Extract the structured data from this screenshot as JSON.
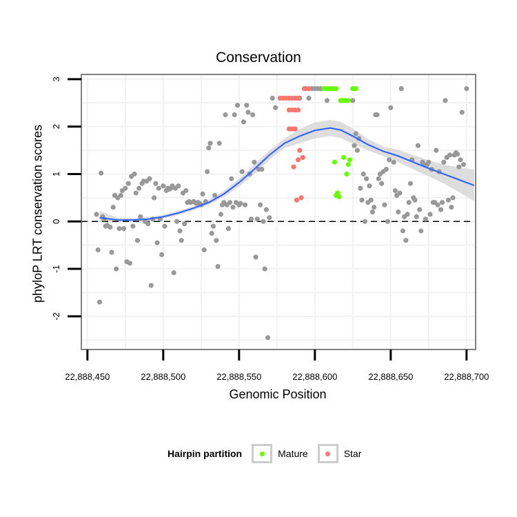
{
  "chart_data": {
    "type": "scatter",
    "title": "Conservation",
    "xlabel": "Genomic Position",
    "ylabel": "phyloP LRT conservation scores",
    "xlim": [
      22888446,
      22888706
    ],
    "ylim": [
      -2.7,
      3.1
    ],
    "x_ticks": [
      22888450,
      22888500,
      22888550,
      22888600,
      22888650,
      22888700
    ],
    "x_tick_labels": [
      "22,888,450",
      "22,888,500",
      "22,888,550",
      "22,888,600",
      "22,888,650",
      "22,888,700"
    ],
    "y_ticks": [
      -2,
      -1,
      0,
      1,
      2,
      3
    ],
    "y_tick_labels": [
      "-2",
      "-1",
      "0",
      "1",
      "2",
      "3"
    ],
    "reference_line": {
      "y": 0,
      "style": "dashed"
    },
    "grid": true,
    "legend": {
      "title": "Hairpin partition",
      "position": "bottom",
      "entries": [
        {
          "label": "Mature",
          "color": "#66ff00"
        },
        {
          "label": "Star",
          "color": "#f8766d"
        }
      ]
    },
    "colors": {
      "other": "#999999",
      "Mature": "#66ff00",
      "Star": "#f8766d",
      "smooth": "#3366ff",
      "band": "#d9d9d9",
      "panel_border": "#808080",
      "grid": "#f2f2f2"
    },
    "smooth": {
      "x": [
        22888458,
        22888470,
        22888480,
        22888490,
        22888500,
        22888510,
        22888520,
        22888530,
        22888540,
        22888550,
        22888560,
        22888570,
        22888580,
        22888590,
        22888600,
        22888610,
        22888617,
        22888625,
        22888635,
        22888645,
        22888655,
        22888665,
        22888675,
        22888685,
        22888695,
        22888705
      ],
      "y": [
        0.08,
        0.03,
        0.03,
        0.05,
        0.1,
        0.18,
        0.28,
        0.4,
        0.58,
        0.82,
        1.1,
        1.4,
        1.65,
        1.8,
        1.92,
        1.97,
        1.93,
        1.8,
        1.62,
        1.48,
        1.38,
        1.25,
        1.12,
        1.0,
        0.88,
        0.76
      ],
      "lower": [
        -0.02,
        -0.02,
        -0.01,
        0.01,
        0.06,
        0.14,
        0.24,
        0.35,
        0.52,
        0.73,
        1.0,
        1.3,
        1.55,
        1.65,
        1.75,
        1.8,
        1.76,
        1.64,
        1.5,
        1.38,
        1.25,
        1.1,
        0.95,
        0.8,
        0.62,
        0.43
      ],
      "upper": [
        0.22,
        0.08,
        0.07,
        0.09,
        0.14,
        0.22,
        0.32,
        0.45,
        0.64,
        0.9,
        1.2,
        1.5,
        1.75,
        1.95,
        2.09,
        2.14,
        2.1,
        1.96,
        1.74,
        1.58,
        1.51,
        1.4,
        1.29,
        1.2,
        1.14,
        1.09
      ]
    },
    "series": [
      {
        "name": "Other",
        "color": "#999999",
        "points": [
          [
            22888456,
            0.15
          ],
          [
            22888457,
            -0.6
          ],
          [
            22888458,
            -1.7
          ],
          [
            22888459,
            1.02
          ],
          [
            22888460,
            0.1
          ],
          [
            22888461,
            0.05
          ],
          [
            22888462,
            -0.1
          ],
          [
            22888463,
            -0.08
          ],
          [
            22888465,
            -0.12
          ],
          [
            22888466,
            -0.65
          ],
          [
            22888467,
            0.3
          ],
          [
            22888468,
            0.55
          ],
          [
            22888469,
            -1.0
          ],
          [
            22888470,
            0.5
          ],
          [
            22888471,
            -0.15
          ],
          [
            22888472,
            0.55
          ],
          [
            22888473,
            0.65
          ],
          [
            22888474,
            -0.15
          ],
          [
            22888475,
            0.7
          ],
          [
            22888476,
            -0.85
          ],
          [
            22888477,
            0.8
          ],
          [
            22888478,
            -0.88
          ],
          [
            22888479,
            0.95
          ],
          [
            22888480,
            -0.1
          ],
          [
            22888481,
            1.0
          ],
          [
            22888482,
            0.6
          ],
          [
            22888483,
            -0.4
          ],
          [
            22888484,
            0.7
          ],
          [
            22888485,
            0.1
          ],
          [
            22888486,
            0.8
          ],
          [
            22888487,
            0.85
          ],
          [
            22888488,
            0.0
          ],
          [
            22888489,
            0.85
          ],
          [
            22888490,
            -0.05
          ],
          [
            22888491,
            0.9
          ],
          [
            22888492,
            -1.35
          ],
          [
            22888493,
            0.05
          ],
          [
            22888494,
            0.5
          ],
          [
            22888495,
            0.8
          ],
          [
            22888496,
            -0.45
          ],
          [
            22888497,
            0.7
          ],
          [
            22888498,
            0.05
          ],
          [
            22888499,
            -0.7
          ],
          [
            22888500,
            0.75
          ],
          [
            22888501,
            -0.1
          ],
          [
            22888502,
            0.65
          ],
          [
            22888503,
            0.7
          ],
          [
            22888504,
            0.68
          ],
          [
            22888505,
            0.7
          ],
          [
            22888506,
            0.75
          ],
          [
            22888507,
            -1.08
          ],
          [
            22888508,
            0.7
          ],
          [
            22888509,
            0.0
          ],
          [
            22888510,
            0.75
          ],
          [
            22888511,
            -0.2
          ],
          [
            22888512,
            -0.4
          ],
          [
            22888513,
            0.6
          ],
          [
            22888514,
            -0.05
          ],
          [
            22888515,
            0.65
          ],
          [
            22888516,
            0.4
          ],
          [
            22888517,
            0.42
          ],
          [
            22888518,
            0.4
          ],
          [
            22888520,
            0.42
          ],
          [
            22888521,
            0.4
          ],
          [
            22888522,
            0.38
          ],
          [
            22888523,
            0.4
          ],
          [
            22888524,
            0.38
          ],
          [
            22888525,
            0.35
          ],
          [
            22888526,
            0.58
          ],
          [
            22888527,
            -0.6
          ],
          [
            22888528,
            0.42
          ],
          [
            22888529,
            1.05
          ],
          [
            22888530,
            1.55
          ],
          [
            22888531,
            1.65
          ],
          [
            22888532,
            -0.25
          ],
          [
            22888533,
            -0.1
          ],
          [
            22888534,
            0.55
          ],
          [
            22888535,
            -0.4
          ],
          [
            22888536,
            -0.95
          ],
          [
            22888537,
            1.65
          ],
          [
            22888538,
            0.15
          ],
          [
            22888539,
            0.35
          ],
          [
            22888540,
            0.4
          ],
          [
            22888541,
            2.25
          ],
          [
            22888542,
            0.35
          ],
          [
            22888543,
            -0.15
          ],
          [
            22888544,
            0.4
          ],
          [
            22888545,
            0.9
          ],
          [
            22888546,
            0.3
          ],
          [
            22888547,
            2.25
          ],
          [
            22888548,
            0.4
          ],
          [
            22888549,
            2.45
          ],
          [
            22888550,
            0.35
          ],
          [
            22888551,
            0.38
          ],
          [
            22888552,
            1.05
          ],
          [
            22888553,
            2.1
          ],
          [
            22888554,
            0.35
          ],
          [
            22888555,
            2.45
          ],
          [
            22888556,
            2.3
          ],
          [
            22888557,
            1.0
          ],
          [
            22888558,
            0.05
          ],
          [
            22888559,
            2.25
          ],
          [
            22888560,
            1.25
          ],
          [
            22888561,
            -0.75
          ],
          [
            22888562,
            0.05
          ],
          [
            22888563,
            1.1
          ],
          [
            22888564,
            0.35
          ],
          [
            22888565,
            1.1
          ],
          [
            22888566,
            0.0
          ],
          [
            22888567,
            -1.0
          ],
          [
            22888568,
            0.25
          ],
          [
            22888569,
            -2.45
          ],
          [
            22888570,
            0.08
          ],
          [
            22888572,
            2.6
          ],
          [
            22888574,
            2.4
          ],
          [
            22888590,
            2.6
          ],
          [
            22888594,
            2.8
          ],
          [
            22888596,
            2.6
          ],
          [
            22888598,
            2.8
          ],
          [
            22888600,
            2.8
          ],
          [
            22888602,
            2.8
          ],
          [
            22888604,
            2.8
          ],
          [
            22888606,
            2.8
          ],
          [
            22888608,
            2.55
          ],
          [
            22888612,
            2.8
          ],
          [
            22888625,
            2.55
          ],
          [
            22888626,
            1.6
          ],
          [
            22888627,
            1.85
          ],
          [
            22888628,
            1.5
          ],
          [
            22888629,
            1.75
          ],
          [
            22888630,
            0.7
          ],
          [
            22888631,
            0.45
          ],
          [
            22888632,
            1.0
          ],
          [
            22888633,
            0.0
          ],
          [
            22888634,
            0.9
          ],
          [
            22888635,
            0.4
          ],
          [
            22888636,
            0.75
          ],
          [
            22888637,
            0.45
          ],
          [
            22888638,
            0.2
          ],
          [
            22888639,
            0.3
          ],
          [
            22888640,
            2.25
          ],
          [
            22888641,
            2.25
          ],
          [
            22888642,
            0.9
          ],
          [
            22888643,
            1.0
          ],
          [
            22888644,
            0.8
          ],
          [
            22888645,
            1.05
          ],
          [
            22888646,
            0.35
          ],
          [
            22888647,
            1.1
          ],
          [
            22888648,
            0.0
          ],
          [
            22888649,
            1.3
          ],
          [
            22888650,
            2.4
          ],
          [
            22888652,
            1.25
          ],
          [
            22888653,
            0.65
          ],
          [
            22888654,
            0.55
          ],
          [
            22888655,
            0.2
          ],
          [
            22888656,
            0.6
          ],
          [
            22888657,
            2.8
          ],
          [
            22888658,
            -0.2
          ],
          [
            22888659,
            0.1
          ],
          [
            22888660,
            -0.4
          ],
          [
            22888661,
            0.15
          ],
          [
            22888662,
            0.4
          ],
          [
            22888663,
            0.8
          ],
          [
            22888664,
            1.3
          ],
          [
            22888665,
            0.5
          ],
          [
            22888666,
            0.45
          ],
          [
            22888667,
            0.1
          ],
          [
            22888668,
            1.6
          ],
          [
            22888669,
            0.25
          ],
          [
            22888670,
            -0.2
          ],
          [
            22888671,
            1.25
          ],
          [
            22888672,
            1.2
          ],
          [
            22888673,
            0.05
          ],
          [
            22888674,
            1.2
          ],
          [
            22888675,
            1.25
          ],
          [
            22888676,
            0.15
          ],
          [
            22888677,
            1.1
          ],
          [
            22888678,
            0.4
          ],
          [
            22888679,
            0.4
          ],
          [
            22888680,
            1.5
          ],
          [
            22888681,
            0.35
          ],
          [
            22888682,
            1.05
          ],
          [
            22888683,
            0.25
          ],
          [
            22888684,
            0.4
          ],
          [
            22888685,
            1.25
          ],
          [
            22888686,
            2.55
          ],
          [
            22888687,
            1.35
          ],
          [
            22888688,
            0.45
          ],
          [
            22888689,
            1.4
          ],
          [
            22888690,
            0.3
          ],
          [
            22888691,
            0.5
          ],
          [
            22888692,
            1.4
          ],
          [
            22888693,
            1.45
          ],
          [
            22888694,
            1.42
          ],
          [
            22888695,
            1.15
          ],
          [
            22888696,
            1.3
          ],
          [
            22888697,
            2.3
          ],
          [
            22888698,
            1.2
          ],
          [
            22888700,
            2.8
          ]
        ]
      },
      {
        "name": "Mature",
        "color": "#66ff00",
        "points": [
          [
            22888606,
            2.8
          ],
          [
            22888608,
            2.8
          ],
          [
            22888610,
            2.8
          ],
          [
            22888612,
            2.8
          ],
          [
            22888614,
            2.8
          ],
          [
            22888613,
            1.25
          ],
          [
            22888614,
            0.55
          ],
          [
            22888615,
            0.6
          ],
          [
            22888616,
            0.52
          ],
          [
            22888617,
            2.55
          ],
          [
            22888618,
            2.55
          ],
          [
            22888619,
            1.35
          ],
          [
            22888620,
            2.55
          ],
          [
            22888621,
            1.0
          ],
          [
            22888622,
            1.2
          ],
          [
            22888622,
            2.55
          ],
          [
            22888623,
            1.3
          ],
          [
            22888625,
            2.8
          ],
          [
            22888626,
            2.8
          ],
          [
            22888627,
            2.8
          ]
        ]
      },
      {
        "name": "Star",
        "color": "#f8766d",
        "points": [
          [
            22888577,
            2.6
          ],
          [
            22888579,
            2.6
          ],
          [
            22888581,
            2.6
          ],
          [
            22888583,
            2.6
          ],
          [
            22888585,
            2.6
          ],
          [
            22888587,
            2.6
          ],
          [
            22888589,
            2.6
          ],
          [
            22888583,
            2.35
          ],
          [
            22888585,
            2.35
          ],
          [
            22888587,
            2.35
          ],
          [
            22888589,
            2.35
          ],
          [
            22888583,
            1.95
          ],
          [
            22888585,
            1.95
          ],
          [
            22888587,
            1.95
          ],
          [
            22888586,
            1.15
          ],
          [
            22888588,
            0.45
          ],
          [
            22888589,
            1.3
          ],
          [
            22888590,
            1.5
          ],
          [
            22888591,
            0.5
          ],
          [
            22888592,
            1.35
          ],
          [
            22888593,
            2.8
          ],
          [
            22888596,
            2.8
          ]
        ]
      }
    ]
  }
}
